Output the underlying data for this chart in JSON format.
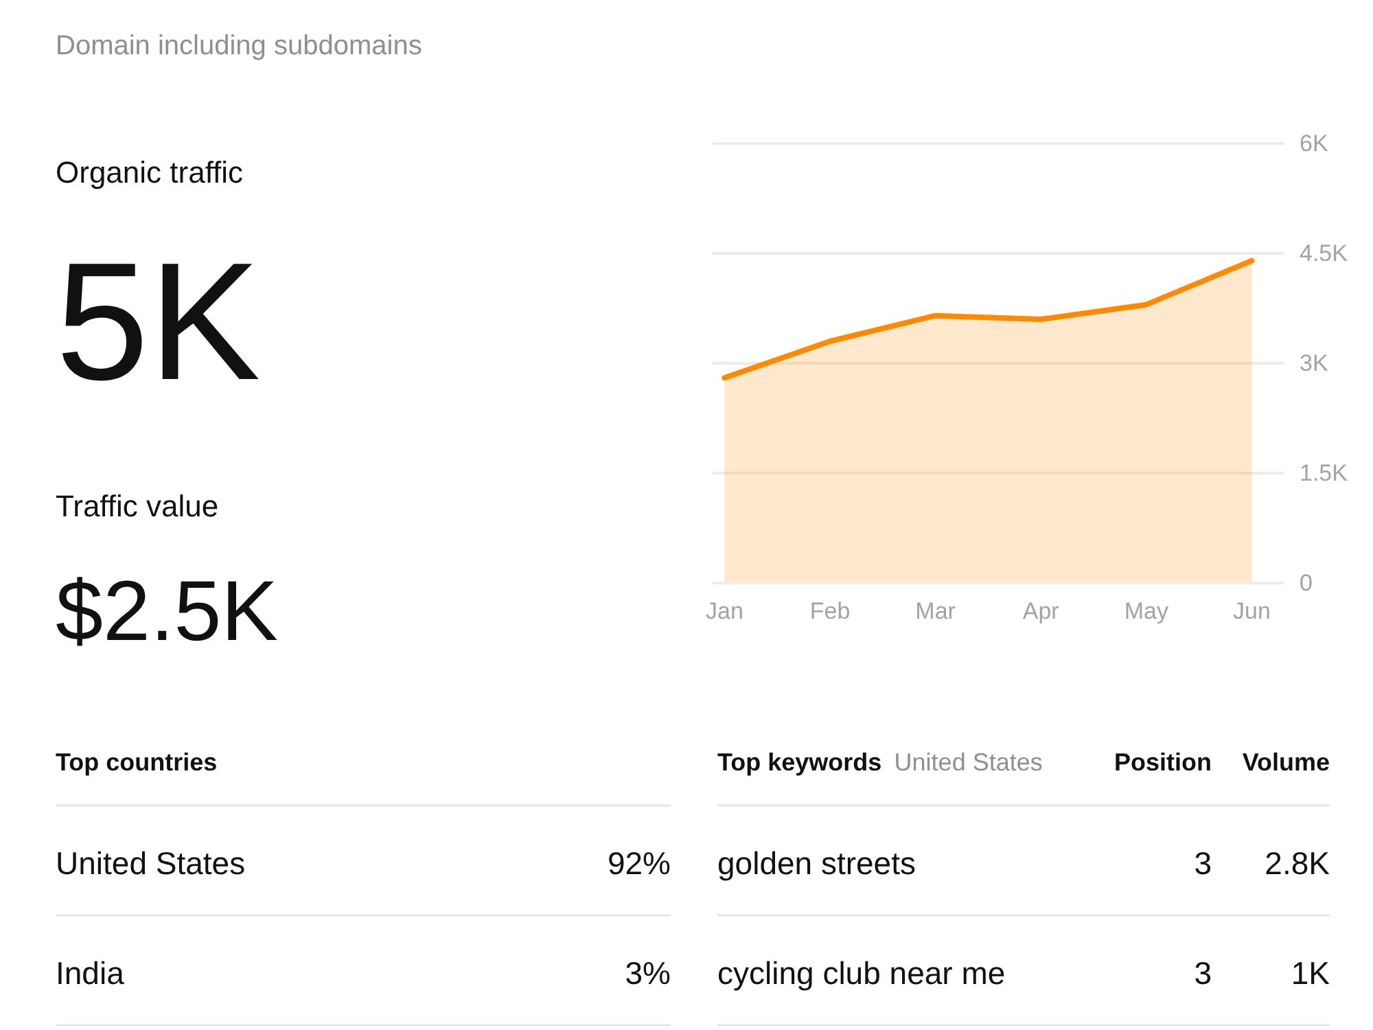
{
  "chart_data": [
    {
      "type": "other",
      "title": "Domain including subdomains",
      "annotations": [
        "Organic traffic",
        "5K",
        "Traffic value",
        "$2.5K"
      ]
    },
    {
      "type": "area",
      "categories": [
        "Jan",
        "Feb",
        "Mar",
        "Apr",
        "May",
        "Jun"
      ],
      "values": [
        2800,
        3300,
        3650,
        3600,
        3800,
        4400
      ],
      "color": "#ff8a00",
      "ylim": [
        0,
        6000
      ],
      "yticks": [
        0,
        {
          "value": 1500,
          "label": "1.5K"
        },
        {
          "value": 3000,
          "label": "3K"
        },
        {
          "value": 4500,
          "label": "4.5K"
        },
        {
          "value": 6000,
          "label": "6K"
        }
      ],
      "grid": "y"
    },
    {
      "type": "other",
      "title": "Top countries",
      "annotations": [
        "United States",
        "92%",
        "India",
        "3%"
      ]
    },
    {
      "type": "other",
      "title": "Top keywords",
      "subtitle": "United States",
      "annotations": [
        "Position",
        "Volume",
        "golden streets",
        "3",
        "2.8K",
        "cycling club near me",
        "3",
        "1K"
      ]
    }
  ]
}
